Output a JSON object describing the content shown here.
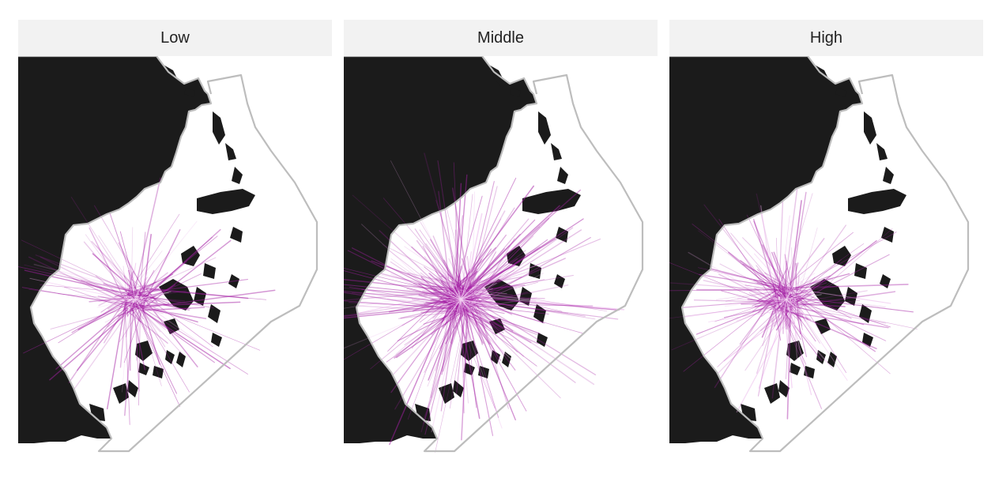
{
  "facets": [
    {
      "label": "Low",
      "intensity": 0.45,
      "spread": 0.85
    },
    {
      "label": "Middle",
      "intensity": 1.0,
      "spread": 1.0
    },
    {
      "label": "High",
      "intensity": 0.6,
      "spread": 0.8
    }
  ],
  "colors": {
    "land": "#1b1b1b",
    "water": "#ffffff",
    "boundary": "#bdbdbd",
    "trajectory": "#a41fa4",
    "trajectory_light": "#e8a6e8",
    "strip": "#f2f2f2"
  }
}
